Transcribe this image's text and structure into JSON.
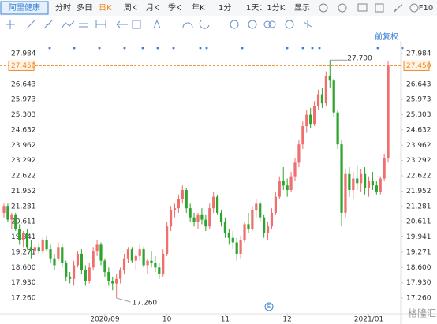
{
  "stock_name": "阿里健康",
  "toolbar": [
    "分时",
    "多日",
    "日K",
    "周K",
    "月K",
    "季K",
    "年K",
    "1分",
    "1天：1分K",
    "显示",
    "F10"
  ],
  "adjust_label": "前复权",
  "watermark": "格隆汇",
  "chart_data": {
    "type": "candlestick",
    "up_color": "#ef6f6f",
    "down_color": "#2da42d",
    "grid": false,
    "ylim": [
      16.57,
      28.26
    ],
    "yticks": [
      27.984,
      26.643,
      25.973,
      25.303,
      24.632,
      23.962,
      23.292,
      22.622,
      21.952,
      21.281,
      20.611,
      19.941,
      19.271,
      {
        "value": 18.6,
        "label": "18.600"
      },
      {
        "value": 17.93,
        "label": "17.930"
      },
      {
        "value": 17.26,
        "label": "17.260"
      }
    ],
    "last_price": {
      "value": 27.45,
      "label": "27.450"
    },
    "high_label": {
      "value": 27.7,
      "label": "27.700"
    },
    "low_label": {
      "value": 17.26,
      "label": "17.260"
    },
    "categories": [
      null,
      null,
      null,
      null,
      null,
      null,
      null,
      null,
      null,
      null,
      null,
      null,
      null,
      null,
      null,
      null,
      null,
      null,
      null,
      null,
      null,
      null,
      null,
      null,
      null,
      null,
      "2020/09",
      null,
      null,
      null,
      null,
      null,
      null,
      null,
      null,
      null,
      null,
      null,
      null,
      null,
      null,
      null,
      "10",
      null,
      null,
      null,
      null,
      null,
      null,
      null,
      null,
      null,
      null,
      null,
      null,
      null,
      null,
      "11",
      null,
      null,
      null,
      null,
      null,
      null,
      null,
      null,
      null,
      null,
      null,
      null,
      null,
      null,
      null,
      "12",
      null,
      null,
      null,
      null,
      null,
      null,
      null,
      null,
      null,
      null,
      null,
      null,
      null,
      null,
      null,
      null,
      null,
      null,
      null,
      null,
      "2021/01",
      null,
      null,
      null,
      null,
      null
    ],
    "ohlc": [
      [
        21.0,
        21.4,
        20.8,
        21.3
      ],
      [
        21.3,
        21.4,
        20.6,
        20.7
      ],
      [
        20.7,
        21.0,
        20.3,
        20.9
      ],
      [
        20.9,
        21.0,
        20.2,
        20.3
      ],
      [
        20.3,
        20.5,
        19.6,
        19.8
      ],
      [
        19.8,
        20.2,
        19.5,
        20.1
      ],
      [
        20.1,
        20.3,
        19.4,
        19.5
      ],
      [
        19.5,
        19.8,
        19.0,
        19.3
      ],
      [
        19.3,
        19.6,
        19.1,
        19.5
      ],
      [
        19.5,
        19.7,
        19.2,
        19.3
      ],
      [
        19.3,
        19.9,
        19.2,
        19.8
      ],
      [
        19.8,
        20.0,
        19.3,
        19.4
      ],
      [
        19.4,
        19.6,
        18.8,
        19.0
      ],
      [
        19.0,
        19.2,
        18.5,
        18.7
      ],
      [
        19.0,
        19.7,
        18.9,
        19.5
      ],
      [
        19.5,
        19.6,
        18.6,
        18.8
      ],
      [
        18.8,
        18.9,
        18.0,
        18.2
      ],
      [
        18.2,
        18.4,
        17.9,
        18.1
      ],
      [
        18.1,
        18.9,
        17.8,
        18.7
      ],
      [
        18.7,
        19.3,
        18.6,
        19.2
      ],
      [
        19.2,
        19.4,
        18.3,
        18.5
      ],
      [
        18.5,
        18.7,
        17.8,
        18.0
      ],
      [
        18.0,
        18.8,
        17.9,
        18.6
      ],
      [
        18.6,
        19.5,
        18.5,
        19.3
      ],
      [
        19.3,
        19.8,
        19.1,
        19.6
      ],
      [
        19.6,
        19.7,
        18.7,
        18.9
      ],
      [
        18.9,
        19.0,
        18.2,
        18.4
      ],
      [
        18.4,
        18.6,
        17.8,
        18.0
      ],
      [
        18.0,
        18.2,
        17.6,
        17.9
      ],
      [
        17.9,
        18.3,
        17.26,
        18.1
      ],
      [
        18.1,
        18.6,
        17.9,
        18.5
      ],
      [
        18.5,
        19.2,
        18.3,
        19.0
      ],
      [
        19.0,
        19.5,
        18.8,
        19.4
      ],
      [
        19.4,
        19.5,
        18.8,
        18.9
      ],
      [
        18.9,
        19.2,
        18.5,
        19.1
      ],
      [
        19.1,
        19.6,
        18.9,
        19.4
      ],
      [
        19.4,
        19.5,
        18.6,
        18.7
      ],
      [
        18.7,
        19.0,
        18.3,
        18.9
      ],
      [
        18.9,
        19.3,
        18.6,
        18.8
      ],
      [
        18.8,
        19.1,
        18.4,
        18.6
      ],
      [
        18.6,
        18.8,
        18.1,
        18.3
      ],
      [
        18.3,
        19.4,
        18.2,
        19.2
      ],
      [
        19.2,
        20.6,
        19.1,
        20.4
      ],
      [
        20.4,
        21.3,
        20.2,
        21.1
      ],
      [
        21.1,
        21.4,
        20.8,
        21.2
      ],
      [
        21.2,
        21.8,
        21.0,
        21.6
      ],
      [
        21.6,
        22.2,
        21.4,
        22.0
      ],
      [
        22.0,
        22.1,
        21.0,
        21.2
      ],
      [
        21.2,
        21.4,
        20.6,
        20.8
      ],
      [
        20.8,
        21.0,
        20.4,
        20.6
      ],
      [
        20.6,
        21.0,
        20.3,
        20.9
      ],
      [
        20.9,
        21.2,
        20.5,
        20.7
      ],
      [
        20.7,
        20.9,
        20.2,
        20.4
      ],
      [
        20.4,
        21.4,
        20.3,
        21.2
      ],
      [
        21.2,
        21.9,
        21.0,
        21.7
      ],
      [
        21.7,
        21.8,
        20.9,
        21.0
      ],
      [
        21.0,
        21.1,
        20.4,
        20.6
      ],
      [
        20.6,
        20.8,
        19.9,
        20.1
      ],
      [
        20.1,
        20.3,
        19.6,
        19.9
      ],
      [
        19.9,
        20.2,
        19.4,
        19.7
      ],
      [
        19.7,
        19.9,
        18.9,
        19.2
      ],
      [
        19.2,
        20.0,
        19.0,
        19.8
      ],
      [
        19.8,
        20.6,
        19.7,
        20.5
      ],
      [
        20.5,
        21.0,
        20.1,
        20.3
      ],
      [
        20.3,
        21.3,
        20.2,
        21.1
      ],
      [
        21.1,
        21.6,
        20.8,
        21.4
      ],
      [
        21.4,
        21.5,
        20.6,
        20.8
      ],
      [
        20.8,
        20.9,
        19.9,
        20.1
      ],
      [
        20.1,
        20.6,
        19.8,
        20.4
      ],
      [
        20.4,
        21.2,
        20.3,
        21.0
      ],
      [
        21.0,
        21.9,
        20.9,
        21.7
      ],
      [
        21.7,
        22.6,
        21.6,
        22.4
      ],
      [
        22.4,
        23.0,
        22.0,
        22.2
      ],
      [
        22.2,
        22.5,
        21.7,
        22.0
      ],
      [
        22.0,
        22.8,
        21.9,
        22.6
      ],
      [
        22.6,
        23.4,
        22.4,
        23.2
      ],
      [
        23.2,
        24.2,
        23.0,
        24.0
      ],
      [
        24.0,
        25.0,
        23.8,
        24.8
      ],
      [
        24.8,
        25.5,
        24.5,
        25.3
      ],
      [
        25.3,
        25.6,
        24.7,
        24.9
      ],
      [
        24.9,
        25.9,
        24.8,
        25.7
      ],
      [
        25.7,
        26.4,
        25.5,
        26.2
      ],
      [
        26.2,
        26.5,
        25.6,
        25.8
      ],
      [
        25.8,
        27.2,
        25.7,
        27.0
      ],
      [
        27.0,
        27.7,
        26.5,
        26.8
      ],
      [
        26.8,
        26.9,
        25.2,
        25.4
      ],
      [
        25.4,
        25.5,
        23.8,
        24.0
      ],
      [
        24.0,
        24.2,
        20.4,
        21.0
      ],
      [
        21.0,
        22.9,
        20.8,
        22.7
      ],
      [
        22.7,
        23.0,
        21.7,
        22.0
      ],
      [
        22.0,
        22.8,
        21.6,
        22.5
      ],
      [
        22.5,
        23.1,
        22.0,
        22.3
      ],
      [
        22.3,
        22.9,
        21.9,
        22.7
      ],
      [
        22.7,
        23.0,
        21.8,
        22.1
      ],
      [
        22.1,
        22.6,
        21.7,
        22.4
      ],
      [
        22.4,
        22.8,
        22.0,
        22.2
      ],
      [
        22.2,
        22.4,
        21.8,
        21.9
      ],
      [
        21.9,
        22.6,
        21.8,
        22.5
      ],
      [
        22.5,
        23.6,
        22.4,
        23.4
      ],
      [
        23.4,
        27.67,
        23.2,
        27.45
      ]
    ]
  }
}
